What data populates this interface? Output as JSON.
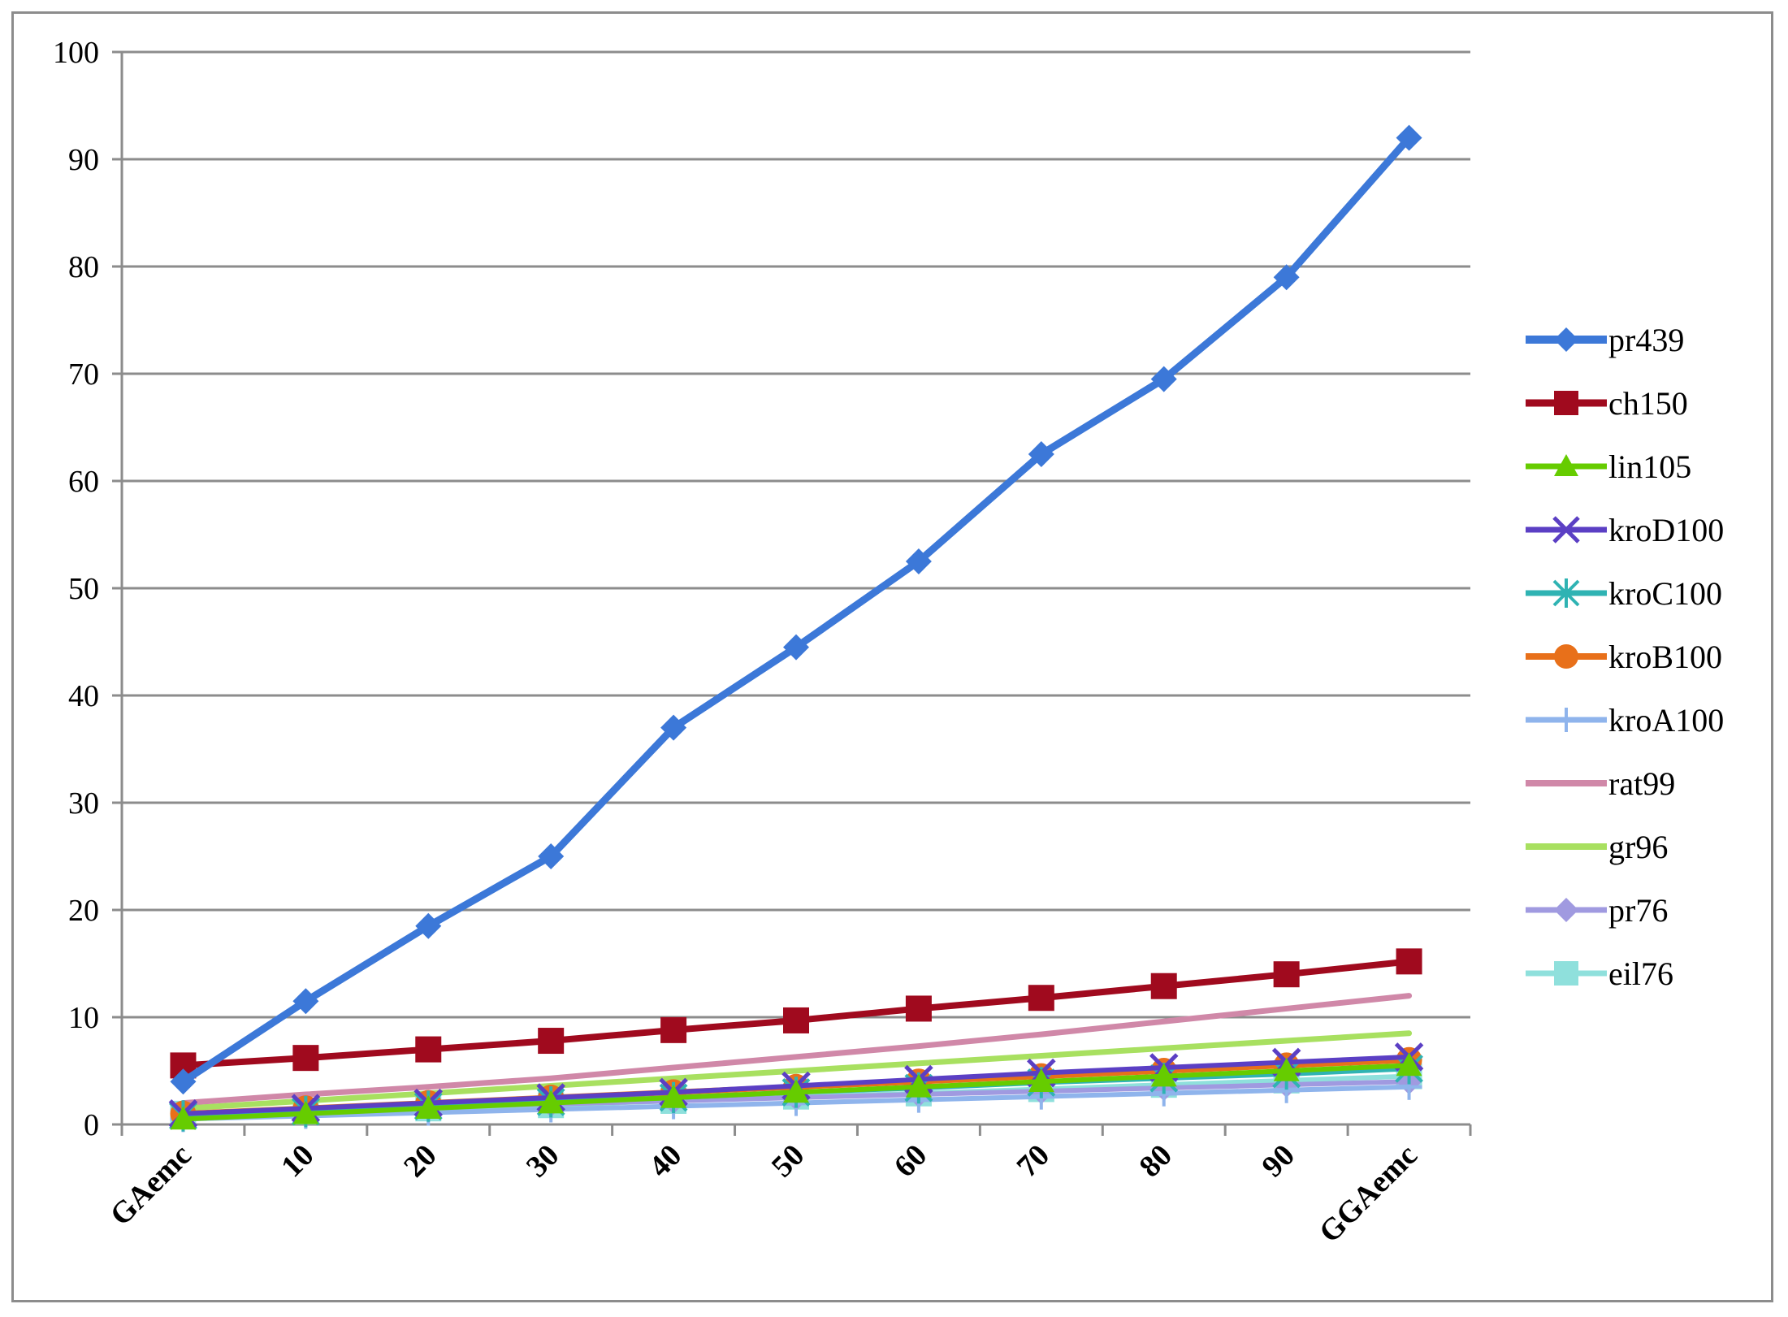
{
  "chart_data": {
    "type": "line",
    "title": "",
    "xlabel": "",
    "ylabel": "",
    "categories": [
      "GAemc",
      "10",
      "20",
      "30",
      "40",
      "50",
      "60",
      "70",
      "80",
      "90",
      "GGAemc"
    ],
    "ylim": [
      0,
      100
    ],
    "yticks": [
      0,
      10,
      20,
      30,
      40,
      50,
      60,
      70,
      80,
      90,
      100
    ],
    "grid": "horizontal",
    "legend": "right",
    "series": [
      {
        "name": "pr439",
        "color": "#3c78d8",
        "marker": "diamond",
        "width": 9,
        "values": [
          4.0,
          11.5,
          18.5,
          25.0,
          37.0,
          44.5,
          52.5,
          62.5,
          69.5,
          79.0,
          92.0
        ]
      },
      {
        "name": "ch150",
        "color": "#a00a1e",
        "marker": "square",
        "width": 8,
        "values": [
          5.5,
          6.2,
          7.0,
          7.8,
          8.8,
          9.7,
          10.8,
          11.8,
          12.9,
          14.0,
          15.2
        ]
      },
      {
        "name": "lin105",
        "color": "#66cc00",
        "marker": "triangle",
        "width": 6,
        "values": [
          0.5,
          1.0,
          1.5,
          2.0,
          2.5,
          3.0,
          3.5,
          4.0,
          4.5,
          5.0,
          5.5
        ]
      },
      {
        "name": "kroD100",
        "color": "#5b3fc4",
        "marker": "x",
        "width": 6,
        "values": [
          1.0,
          1.5,
          2.0,
          2.5,
          3.0,
          3.6,
          4.2,
          4.8,
          5.3,
          5.8,
          6.3
        ]
      },
      {
        "name": "kroC100",
        "color": "#2fb3b3",
        "marker": "star",
        "width": 6,
        "values": [
          0.8,
          1.2,
          1.7,
          2.1,
          2.5,
          3.0,
          3.4,
          3.9,
          4.3,
          4.7,
          5.2
        ]
      },
      {
        "name": "kroB100",
        "color": "#e8701a",
        "marker": "circle",
        "width": 7,
        "values": [
          1.0,
          1.5,
          2.0,
          2.5,
          3.0,
          3.5,
          4.0,
          4.5,
          5.0,
          5.5,
          6.0
        ]
      },
      {
        "name": "kroA100",
        "color": "#8fb4ec",
        "marker": "plus",
        "width": 6,
        "values": [
          0.5,
          0.8,
          1.1,
          1.4,
          1.7,
          2.0,
          2.3,
          2.6,
          2.9,
          3.2,
          3.5
        ]
      },
      {
        "name": "rat99",
        "color": "#d088a8",
        "marker": "none",
        "width": 7,
        "values": [
          2.0,
          2.8,
          3.5,
          4.3,
          5.3,
          6.3,
          7.3,
          8.4,
          9.6,
          10.8,
          12.0
        ]
      },
      {
        "name": "gr96",
        "color": "#a8e060",
        "marker": "none",
        "width": 7,
        "values": [
          1.5,
          2.2,
          2.9,
          3.6,
          4.3,
          5.0,
          5.7,
          6.4,
          7.1,
          7.8,
          8.5
        ]
      },
      {
        "name": "pr76",
        "color": "#a09ae0",
        "marker": "diamond",
        "width": 6,
        "values": [
          1.0,
          1.3,
          1.6,
          1.9,
          2.2,
          2.5,
          2.8,
          3.1,
          3.4,
          3.7,
          4.0
        ]
      },
      {
        "name": "eil76",
        "color": "#8fe0dc",
        "marker": "square",
        "width": 6,
        "values": [
          1.0,
          1.2,
          1.5,
          1.8,
          2.2,
          2.6,
          2.9,
          3.3,
          3.7,
          4.1,
          4.5
        ]
      }
    ]
  }
}
